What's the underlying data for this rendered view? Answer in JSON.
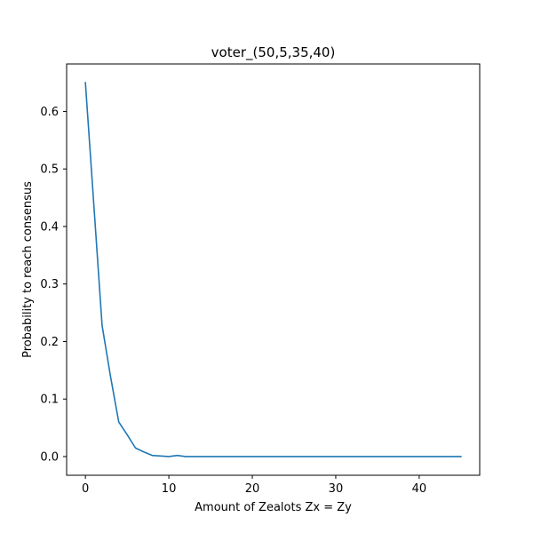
{
  "chart_data": {
    "type": "line",
    "title": "voter_(50,5,35,40)",
    "xlabel": "Amount of Zealots Zx = Zy",
    "ylabel": "Probability to reach consensus",
    "xlim": [
      -2.25,
      47.25
    ],
    "ylim": [
      -0.0325,
      0.6825
    ],
    "xticks": [
      0,
      10,
      20,
      30,
      40
    ],
    "yticks": [
      0.0,
      0.1,
      0.2,
      0.3,
      0.4,
      0.5,
      0.6
    ],
    "xtick_labels": [
      "0",
      "10",
      "20",
      "30",
      "40"
    ],
    "ytick_labels": [
      "0.0",
      "0.1",
      "0.2",
      "0.3",
      "0.4",
      "0.5",
      "0.6"
    ],
    "grid": false,
    "series": [
      {
        "color": "#1f77b4",
        "x": [
          0,
          1,
          2,
          3,
          4,
          5,
          6,
          7,
          8,
          9,
          10,
          11,
          12,
          13,
          14,
          15,
          16,
          17,
          18,
          19,
          20,
          21,
          22,
          23,
          24,
          25,
          26,
          27,
          28,
          29,
          30,
          31,
          32,
          33,
          34,
          35,
          36,
          37,
          38,
          39,
          40,
          41,
          42,
          43,
          44,
          45
        ],
        "y": [
          0.65,
          0.44,
          0.228,
          0.14,
          0.06,
          0.038,
          0.015,
          0.008,
          0.002,
          0.001,
          0.0,
          0.002,
          0.0,
          0.0,
          0.0,
          0.0,
          0.0,
          0.0,
          0.0,
          0.0,
          0.0,
          0.0,
          0.0,
          0.0,
          0.0,
          0.0,
          0.0,
          0.0,
          0.0,
          0.0,
          0.0,
          0.0,
          0.0,
          0.0,
          0.0,
          0.0,
          0.0,
          0.0,
          0.0,
          0.0,
          0.0,
          0.0,
          0.0,
          0.0,
          0.0,
          0.0
        ]
      }
    ]
  }
}
